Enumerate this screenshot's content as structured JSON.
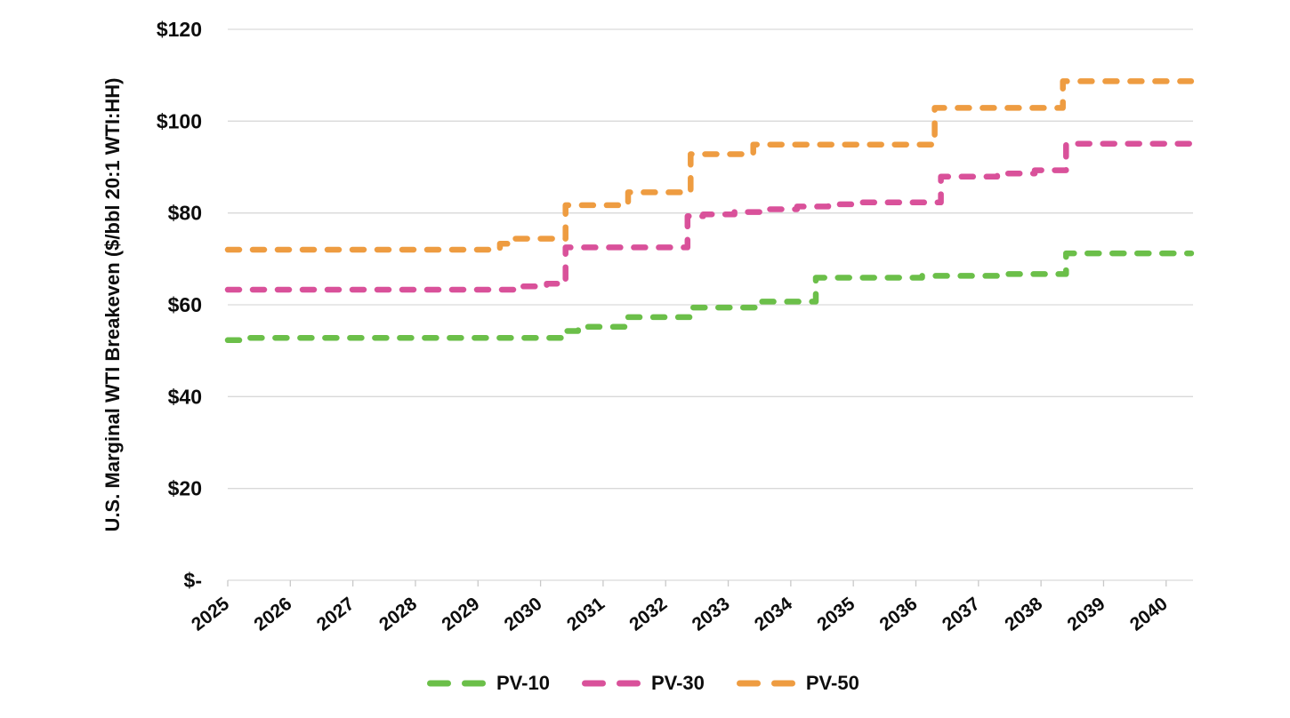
{
  "chart_data": {
    "type": "line",
    "style": "stepped-dashed",
    "title": "",
    "xlabel": "",
    "ylabel": "U.S. Marginal WTI Breakeven ($/bbl 20:1 WTI:HH)",
    "ylim": [
      0,
      120
    ],
    "y_ticks": [
      {
        "value": 120,
        "label": "$120"
      },
      {
        "value": 100,
        "label": "$100"
      },
      {
        "value": 80,
        "label": "$80"
      },
      {
        "value": 60,
        "label": "$60"
      },
      {
        "value": 40,
        "label": "$40"
      },
      {
        "value": 20,
        "label": "$20"
      },
      {
        "value": 0,
        "label": "$-"
      }
    ],
    "x_ticks": [
      2025,
      2026,
      2027,
      2028,
      2029,
      2030,
      2031,
      2032,
      2033,
      2034,
      2035,
      2036,
      2037,
      2038,
      2039,
      2040
    ],
    "x_axis_range": [
      2025,
      2040.43
    ],
    "x_line_end": 2040.4,
    "grid": "horizontal",
    "legend_position": "bottom-center",
    "series": [
      {
        "name": "PV-10",
        "color": "#6bbf49",
        "step_points": [
          [
            2025.0,
            52.3
          ],
          [
            2025.3,
            52.8
          ],
          [
            2030.35,
            54.3
          ],
          [
            2030.6,
            55.2
          ],
          [
            2031.35,
            57.3
          ],
          [
            2032.4,
            59.4
          ],
          [
            2033.45,
            60.7
          ],
          [
            2034.4,
            65.9
          ],
          [
            2036.1,
            66.3
          ],
          [
            2037.4,
            66.7
          ],
          [
            2038.4,
            71.2
          ]
        ]
      },
      {
        "name": "PV-30",
        "color": "#d9519a",
        "step_points": [
          [
            2025.0,
            63.3
          ],
          [
            2029.6,
            64.0
          ],
          [
            2030.1,
            64.6
          ],
          [
            2030.4,
            72.5
          ],
          [
            2032.35,
            79.3
          ],
          [
            2032.6,
            79.7
          ],
          [
            2033.1,
            80.2
          ],
          [
            2033.6,
            80.8
          ],
          [
            2034.1,
            81.4
          ],
          [
            2034.6,
            81.9
          ],
          [
            2035.1,
            82.3
          ],
          [
            2036.4,
            87.9
          ],
          [
            2037.3,
            88.6
          ],
          [
            2037.9,
            89.3
          ],
          [
            2038.4,
            95.1
          ]
        ]
      },
      {
        "name": "PV-50",
        "color": "#ee9c41",
        "step_points": [
          [
            2025.0,
            72.0
          ],
          [
            2029.35,
            73.3
          ],
          [
            2029.6,
            74.4
          ],
          [
            2030.4,
            81.7
          ],
          [
            2031.4,
            84.5
          ],
          [
            2032.4,
            92.8
          ],
          [
            2033.4,
            94.9
          ],
          [
            2036.3,
            102.9
          ],
          [
            2038.35,
            108.7
          ]
        ]
      }
    ]
  }
}
